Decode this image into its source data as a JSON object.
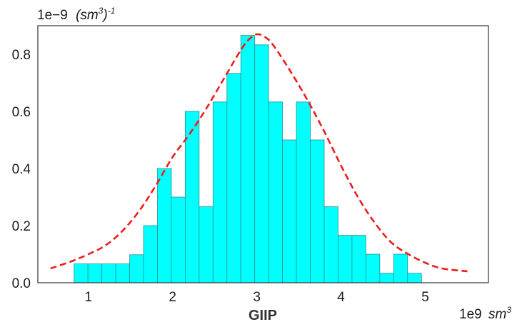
{
  "chart_data": {
    "type": "bar",
    "xlabel": "GIIP",
    "x_offset": "1e9",
    "x_unit": "sm",
    "x_unit_exp": "3",
    "y_offset": "1e−9",
    "y_unit": "(sm",
    "y_unit_exp": "3",
    "y_unit_close": ")",
    "y_unit_exp2": "-1",
    "xlim": [
      0.4,
      5.75
    ],
    "ylim": [
      0,
      0.9
    ],
    "xticks": [
      1,
      2,
      3,
      4,
      5
    ],
    "yticks": [
      0.0,
      0.2,
      0.4,
      0.6,
      0.8
    ],
    "ytick_labels": [
      "0.0",
      "0.2",
      "0.4",
      "0.6",
      "0.8"
    ],
    "grid": false,
    "bar_color": "#00ffff",
    "bar_edge_color": "#2a8f8f",
    "curve_color": "#ee1c1c",
    "bin_edges": [
      0.83,
      0.995,
      1.16,
      1.325,
      1.49,
      1.655,
      1.82,
      1.985,
      2.15,
      2.315,
      2.48,
      2.645,
      2.81,
      2.975,
      3.14,
      3.305,
      3.47,
      3.635,
      3.8,
      3.965,
      4.13,
      4.295,
      4.46,
      4.625,
      4.79,
      4.955
    ],
    "densities": [
      0.066,
      0.066,
      0.066,
      0.066,
      0.098,
      0.2,
      0.4,
      0.3,
      0.6,
      0.266,
      0.633,
      0.733,
      0.866,
      0.833,
      0.633,
      0.5,
      0.633,
      0.5,
      0.266,
      0.166,
      0.166,
      0.1,
      0.033,
      0.1,
      0.033
    ],
    "series": [
      {
        "type": "line",
        "style": "dashed",
        "x": [
          0.55,
          0.8,
          1.0,
          1.2,
          1.4,
          1.6,
          1.8,
          2.0,
          2.2,
          2.4,
          2.6,
          2.8,
          2.9,
          3.0,
          3.1,
          3.2,
          3.4,
          3.6,
          3.8,
          4.0,
          4.2,
          4.4,
          4.6,
          4.8,
          5.0,
          5.2,
          5.5
        ],
        "y": [
          0.05,
          0.075,
          0.1,
          0.13,
          0.18,
          0.25,
          0.34,
          0.44,
          0.52,
          0.61,
          0.71,
          0.81,
          0.85,
          0.87,
          0.86,
          0.83,
          0.74,
          0.64,
          0.53,
          0.41,
          0.3,
          0.21,
          0.14,
          0.1,
          0.07,
          0.05,
          0.04
        ]
      }
    ]
  }
}
